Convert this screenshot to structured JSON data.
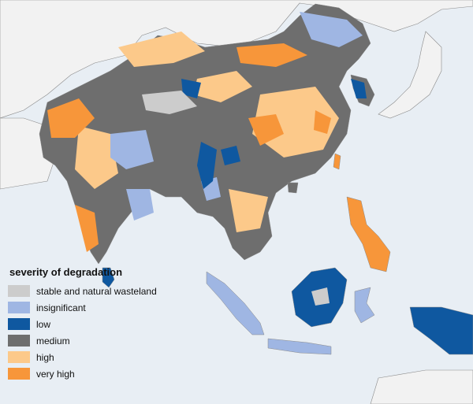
{
  "legend": {
    "title": "severity of degradation",
    "items": [
      {
        "label": "stable and natural wasteland",
        "color": "#cccccc"
      },
      {
        "label": "insignificant",
        "color": "#9fb6e3"
      },
      {
        "label": "low",
        "color": "#0f58a0"
      },
      {
        "label": "medium",
        "color": "#6e6e6e"
      },
      {
        "label": "high",
        "color": "#fcc98a"
      },
      {
        "label": "very high",
        "color": "#f7963a"
      }
    ]
  },
  "colors": {
    "sea": "#e8eef4",
    "outside_land": "#f2f2f2",
    "border": "#8a8a8a"
  }
}
